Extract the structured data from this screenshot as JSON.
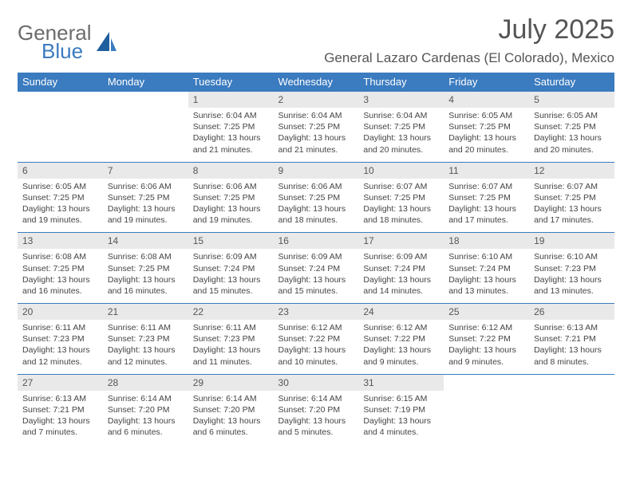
{
  "logo": {
    "general": "General",
    "blue": "Blue"
  },
  "title": "July 2025",
  "location": "General Lazaro Cardenas (El Colorado), Mexico",
  "colors": {
    "header_bg": "#3b7bbf",
    "header_fg": "#ffffff",
    "daynum_bg": "#e9e9e9",
    "row_border": "#3b7bbf",
    "text": "#444444",
    "title_color": "#555555",
    "logo_gray": "#6b6b6b",
    "logo_blue": "#3b7bbf",
    "background": "#ffffff"
  },
  "weekdays": [
    "Sunday",
    "Monday",
    "Tuesday",
    "Wednesday",
    "Thursday",
    "Friday",
    "Saturday"
  ],
  "weeks": [
    [
      null,
      null,
      {
        "n": "1",
        "sr": "Sunrise: 6:04 AM",
        "ss": "Sunset: 7:25 PM",
        "dl1": "Daylight: 13 hours",
        "dl2": "and 21 minutes."
      },
      {
        "n": "2",
        "sr": "Sunrise: 6:04 AM",
        "ss": "Sunset: 7:25 PM",
        "dl1": "Daylight: 13 hours",
        "dl2": "and 21 minutes."
      },
      {
        "n": "3",
        "sr": "Sunrise: 6:04 AM",
        "ss": "Sunset: 7:25 PM",
        "dl1": "Daylight: 13 hours",
        "dl2": "and 20 minutes."
      },
      {
        "n": "4",
        "sr": "Sunrise: 6:05 AM",
        "ss": "Sunset: 7:25 PM",
        "dl1": "Daylight: 13 hours",
        "dl2": "and 20 minutes."
      },
      {
        "n": "5",
        "sr": "Sunrise: 6:05 AM",
        "ss": "Sunset: 7:25 PM",
        "dl1": "Daylight: 13 hours",
        "dl2": "and 20 minutes."
      }
    ],
    [
      {
        "n": "6",
        "sr": "Sunrise: 6:05 AM",
        "ss": "Sunset: 7:25 PM",
        "dl1": "Daylight: 13 hours",
        "dl2": "and 19 minutes."
      },
      {
        "n": "7",
        "sr": "Sunrise: 6:06 AM",
        "ss": "Sunset: 7:25 PM",
        "dl1": "Daylight: 13 hours",
        "dl2": "and 19 minutes."
      },
      {
        "n": "8",
        "sr": "Sunrise: 6:06 AM",
        "ss": "Sunset: 7:25 PM",
        "dl1": "Daylight: 13 hours",
        "dl2": "and 19 minutes."
      },
      {
        "n": "9",
        "sr": "Sunrise: 6:06 AM",
        "ss": "Sunset: 7:25 PM",
        "dl1": "Daylight: 13 hours",
        "dl2": "and 18 minutes."
      },
      {
        "n": "10",
        "sr": "Sunrise: 6:07 AM",
        "ss": "Sunset: 7:25 PM",
        "dl1": "Daylight: 13 hours",
        "dl2": "and 18 minutes."
      },
      {
        "n": "11",
        "sr": "Sunrise: 6:07 AM",
        "ss": "Sunset: 7:25 PM",
        "dl1": "Daylight: 13 hours",
        "dl2": "and 17 minutes."
      },
      {
        "n": "12",
        "sr": "Sunrise: 6:07 AM",
        "ss": "Sunset: 7:25 PM",
        "dl1": "Daylight: 13 hours",
        "dl2": "and 17 minutes."
      }
    ],
    [
      {
        "n": "13",
        "sr": "Sunrise: 6:08 AM",
        "ss": "Sunset: 7:25 PM",
        "dl1": "Daylight: 13 hours",
        "dl2": "and 16 minutes."
      },
      {
        "n": "14",
        "sr": "Sunrise: 6:08 AM",
        "ss": "Sunset: 7:25 PM",
        "dl1": "Daylight: 13 hours",
        "dl2": "and 16 minutes."
      },
      {
        "n": "15",
        "sr": "Sunrise: 6:09 AM",
        "ss": "Sunset: 7:24 PM",
        "dl1": "Daylight: 13 hours",
        "dl2": "and 15 minutes."
      },
      {
        "n": "16",
        "sr": "Sunrise: 6:09 AM",
        "ss": "Sunset: 7:24 PM",
        "dl1": "Daylight: 13 hours",
        "dl2": "and 15 minutes."
      },
      {
        "n": "17",
        "sr": "Sunrise: 6:09 AM",
        "ss": "Sunset: 7:24 PM",
        "dl1": "Daylight: 13 hours",
        "dl2": "and 14 minutes."
      },
      {
        "n": "18",
        "sr": "Sunrise: 6:10 AM",
        "ss": "Sunset: 7:24 PM",
        "dl1": "Daylight: 13 hours",
        "dl2": "and 13 minutes."
      },
      {
        "n": "19",
        "sr": "Sunrise: 6:10 AM",
        "ss": "Sunset: 7:23 PM",
        "dl1": "Daylight: 13 hours",
        "dl2": "and 13 minutes."
      }
    ],
    [
      {
        "n": "20",
        "sr": "Sunrise: 6:11 AM",
        "ss": "Sunset: 7:23 PM",
        "dl1": "Daylight: 13 hours",
        "dl2": "and 12 minutes."
      },
      {
        "n": "21",
        "sr": "Sunrise: 6:11 AM",
        "ss": "Sunset: 7:23 PM",
        "dl1": "Daylight: 13 hours",
        "dl2": "and 12 minutes."
      },
      {
        "n": "22",
        "sr": "Sunrise: 6:11 AM",
        "ss": "Sunset: 7:23 PM",
        "dl1": "Daylight: 13 hours",
        "dl2": "and 11 minutes."
      },
      {
        "n": "23",
        "sr": "Sunrise: 6:12 AM",
        "ss": "Sunset: 7:22 PM",
        "dl1": "Daylight: 13 hours",
        "dl2": "and 10 minutes."
      },
      {
        "n": "24",
        "sr": "Sunrise: 6:12 AM",
        "ss": "Sunset: 7:22 PM",
        "dl1": "Daylight: 13 hours",
        "dl2": "and 9 minutes."
      },
      {
        "n": "25",
        "sr": "Sunrise: 6:12 AM",
        "ss": "Sunset: 7:22 PM",
        "dl1": "Daylight: 13 hours",
        "dl2": "and 9 minutes."
      },
      {
        "n": "26",
        "sr": "Sunrise: 6:13 AM",
        "ss": "Sunset: 7:21 PM",
        "dl1": "Daylight: 13 hours",
        "dl2": "and 8 minutes."
      }
    ],
    [
      {
        "n": "27",
        "sr": "Sunrise: 6:13 AM",
        "ss": "Sunset: 7:21 PM",
        "dl1": "Daylight: 13 hours",
        "dl2": "and 7 minutes."
      },
      {
        "n": "28",
        "sr": "Sunrise: 6:14 AM",
        "ss": "Sunset: 7:20 PM",
        "dl1": "Daylight: 13 hours",
        "dl2": "and 6 minutes."
      },
      {
        "n": "29",
        "sr": "Sunrise: 6:14 AM",
        "ss": "Sunset: 7:20 PM",
        "dl1": "Daylight: 13 hours",
        "dl2": "and 6 minutes."
      },
      {
        "n": "30",
        "sr": "Sunrise: 6:14 AM",
        "ss": "Sunset: 7:20 PM",
        "dl1": "Daylight: 13 hours",
        "dl2": "and 5 minutes."
      },
      {
        "n": "31",
        "sr": "Sunrise: 6:15 AM",
        "ss": "Sunset: 7:19 PM",
        "dl1": "Daylight: 13 hours",
        "dl2": "and 4 minutes."
      },
      null,
      null
    ]
  ]
}
